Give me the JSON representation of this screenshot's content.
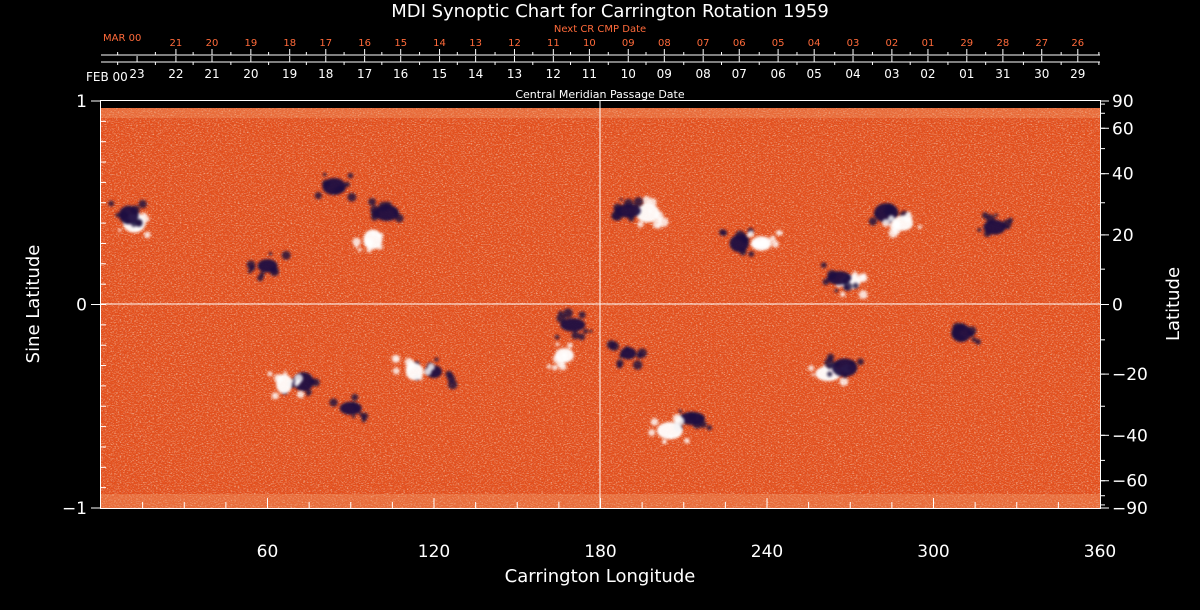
{
  "colors": {
    "background": "#000000",
    "axis": "#ffffff",
    "next_cr_labels": "#ff6a3a",
    "field_base": "#e8501a",
    "positive_field": "#ffffff",
    "negative_field": "#1a1040"
  },
  "chart_data": {
    "type": "heatmap",
    "title": "MDI Synoptic Chart for Carrington Rotation 1959",
    "xlabel": "Carrington Longitude",
    "ylabel": "Sine Latitude",
    "y2label": "Latitude",
    "top_axis_label": "Central Meridian Passage Date",
    "next_axis_label": "Next CR CMP Date",
    "xlim": [
      0,
      360
    ],
    "ylim": [
      -1,
      1
    ],
    "x_ticks": [
      60,
      120,
      180,
      240,
      300,
      360
    ],
    "y_ticks": [
      {
        "value": 1,
        "label": "1"
      },
      {
        "value": 0,
        "label": "0"
      },
      {
        "value": -1,
        "label": "−1"
      }
    ],
    "right_ticks": [
      {
        "lat": 90,
        "label": "90"
      },
      {
        "lat": 60,
        "label": "60"
      },
      {
        "lat": 40,
        "label": "40"
      },
      {
        "lat": 20,
        "label": "20"
      },
      {
        "lat": 0,
        "label": "0"
      },
      {
        "lat": -20,
        "label": "−20"
      },
      {
        "lat": -40,
        "label": "−40"
      },
      {
        "lat": -60,
        "label": "−60"
      },
      {
        "lat": -90,
        "label": "−90"
      }
    ],
    "cmp_month_label": "FEB 00",
    "cmp_dates": [
      "23",
      "22",
      "21",
      "20",
      "19",
      "18",
      "17",
      "16",
      "15",
      "14",
      "13",
      "12",
      "11",
      "10",
      "09",
      "08",
      "07",
      "06",
      "05",
      "04",
      "03",
      "02",
      "01",
      "31",
      "30",
      "29"
    ],
    "cmp_longitudes": [
      13,
      27,
      40,
      54,
      68,
      81,
      95,
      108,
      122,
      135,
      149,
      163,
      176,
      190,
      203,
      217,
      230,
      244,
      257,
      271,
      285,
      298,
      312,
      325,
      339,
      352
    ],
    "next_month_label": "MAR 00",
    "next_dates": [
      "21",
      "20",
      "19",
      "18",
      "17",
      "16",
      "15",
      "14",
      "13",
      "12",
      "11",
      "10",
      "09",
      "08",
      "07",
      "06",
      "05",
      "04",
      "03",
      "02",
      "01",
      "29",
      "28",
      "27",
      "26"
    ],
    "next_longitudes": [
      27,
      40,
      54,
      68,
      81,
      95,
      108,
      122,
      135,
      149,
      163,
      176,
      190,
      203,
      217,
      230,
      244,
      257,
      271,
      285,
      298,
      312,
      325,
      339,
      352
    ],
    "active_regions": [
      {
        "lon": 12,
        "sinlat": 0.4,
        "polarity": "positive"
      },
      {
        "lon": 10,
        "sinlat": 0.44,
        "polarity": "negative"
      },
      {
        "lon": 60,
        "sinlat": 0.19,
        "polarity": "negative"
      },
      {
        "lon": 84,
        "sinlat": 0.58,
        "polarity": "negative"
      },
      {
        "lon": 98,
        "sinlat": 0.32,
        "polarity": "positive"
      },
      {
        "lon": 103,
        "sinlat": 0.45,
        "polarity": "negative"
      },
      {
        "lon": 170,
        "sinlat": -0.1,
        "polarity": "negative"
      },
      {
        "lon": 167,
        "sinlat": -0.25,
        "polarity": "positive"
      },
      {
        "lon": 120,
        "sinlat": -0.33,
        "polarity": "negative"
      },
      {
        "lon": 113,
        "sinlat": -0.33,
        "polarity": "positive"
      },
      {
        "lon": 73,
        "sinlat": -0.38,
        "polarity": "negative"
      },
      {
        "lon": 66,
        "sinlat": -0.39,
        "polarity": "positive"
      },
      {
        "lon": 90,
        "sinlat": -0.51,
        "polarity": "negative"
      },
      {
        "lon": 197,
        "sinlat": 0.45,
        "polarity": "positive"
      },
      {
        "lon": 190,
        "sinlat": 0.46,
        "polarity": "negative"
      },
      {
        "lon": 230,
        "sinlat": 0.3,
        "polarity": "negative"
      },
      {
        "lon": 238,
        "sinlat": 0.3,
        "polarity": "positive"
      },
      {
        "lon": 283,
        "sinlat": 0.45,
        "polarity": "negative"
      },
      {
        "lon": 289,
        "sinlat": 0.4,
        "polarity": "positive"
      },
      {
        "lon": 270,
        "sinlat": 0.11,
        "polarity": "positive"
      },
      {
        "lon": 266,
        "sinlat": 0.13,
        "polarity": "negative"
      },
      {
        "lon": 262,
        "sinlat": -0.34,
        "polarity": "positive"
      },
      {
        "lon": 268,
        "sinlat": -0.31,
        "polarity": "negative"
      },
      {
        "lon": 213,
        "sinlat": -0.56,
        "polarity": "negative"
      },
      {
        "lon": 205,
        "sinlat": -0.62,
        "polarity": "positive"
      },
      {
        "lon": 190,
        "sinlat": -0.24,
        "polarity": "negative"
      },
      {
        "lon": 310,
        "sinlat": -0.14,
        "polarity": "negative"
      },
      {
        "lon": 322,
        "sinlat": 0.38,
        "polarity": "negative"
      }
    ]
  }
}
